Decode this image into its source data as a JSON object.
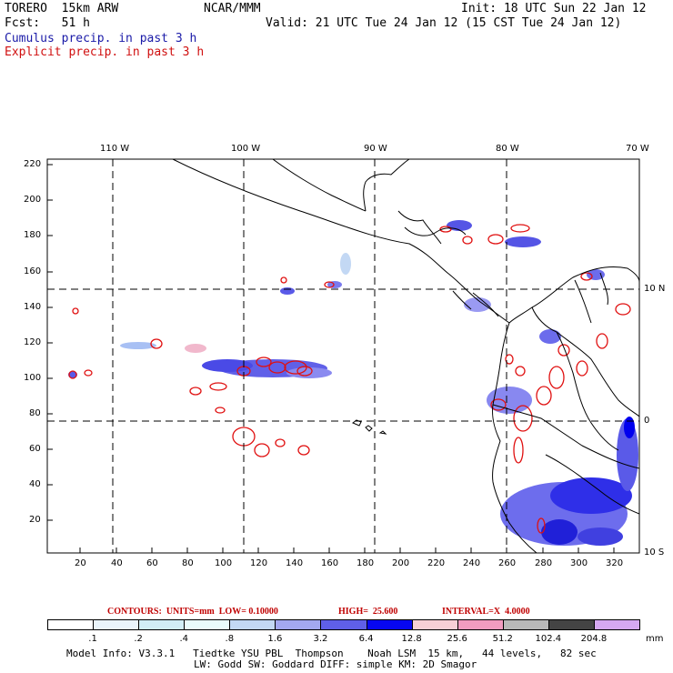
{
  "header": {
    "model": "TORERO  15km ARW",
    "org": "NCAR/MMM",
    "init": "Init: 18 UTC Sun 22 Jan 12",
    "fcst": "Fcst:   51 h",
    "valid": "Valid: 21 UTC Tue 24 Jan 12 (15 CST Tue 24 Jan 12)",
    "legend_cumulus": "Cumulus precip. in past 3 h",
    "legend_explicit": "Explicit precip. in past 3 h"
  },
  "map": {
    "top_lon_labels": [
      "110 W",
      "100 W",
      "90 W",
      "80 W",
      "70 W"
    ],
    "right_lat_labels": [
      "10 N",
      "0",
      "10 S"
    ],
    "left_ticks": [
      "220",
      "200",
      "180",
      "160",
      "140",
      "120",
      "100",
      "80",
      "60",
      "40",
      "20"
    ],
    "bottom_ticks": [
      "20",
      "40",
      "60",
      "80",
      "100",
      "120",
      "140",
      "160",
      "180",
      "200",
      "220",
      "240",
      "260",
      "280",
      "300",
      "320"
    ]
  },
  "contour_info": {
    "units": "CONTOURS:  UNITS=mm  LOW= 0.10000",
    "high": "HIGH=  25.600",
    "interval": "INTERVAL=X  4.0000"
  },
  "colorbar": {
    "labels": [
      ".1",
      ".2",
      ".4",
      ".8",
      "1.6",
      "3.2",
      "6.4",
      "12.8",
      "25.6",
      "51.2",
      "102.4",
      "204.8"
    ],
    "unit": "mm",
    "colors": [
      "#ffffff",
      "#eaf4fb",
      "#d2eef6",
      "#e9fbfb",
      "#c3d8f4",
      "#a3a8f0",
      "#5f5fe8",
      "#0707f0",
      "#f7cfd6",
      "#f29cc0",
      "#b9b9b9",
      "#444444",
      "#d6a8f2"
    ]
  },
  "footer": {
    "line1": "Model Info: V3.3.1   Tiedtke YSU PBL  Thompson    Noah LSM  15 km,   44 levels,   82 sec",
    "line2": "LW: Godd SW: Goddard DIFF: simple KM: 2D Smagor"
  }
}
